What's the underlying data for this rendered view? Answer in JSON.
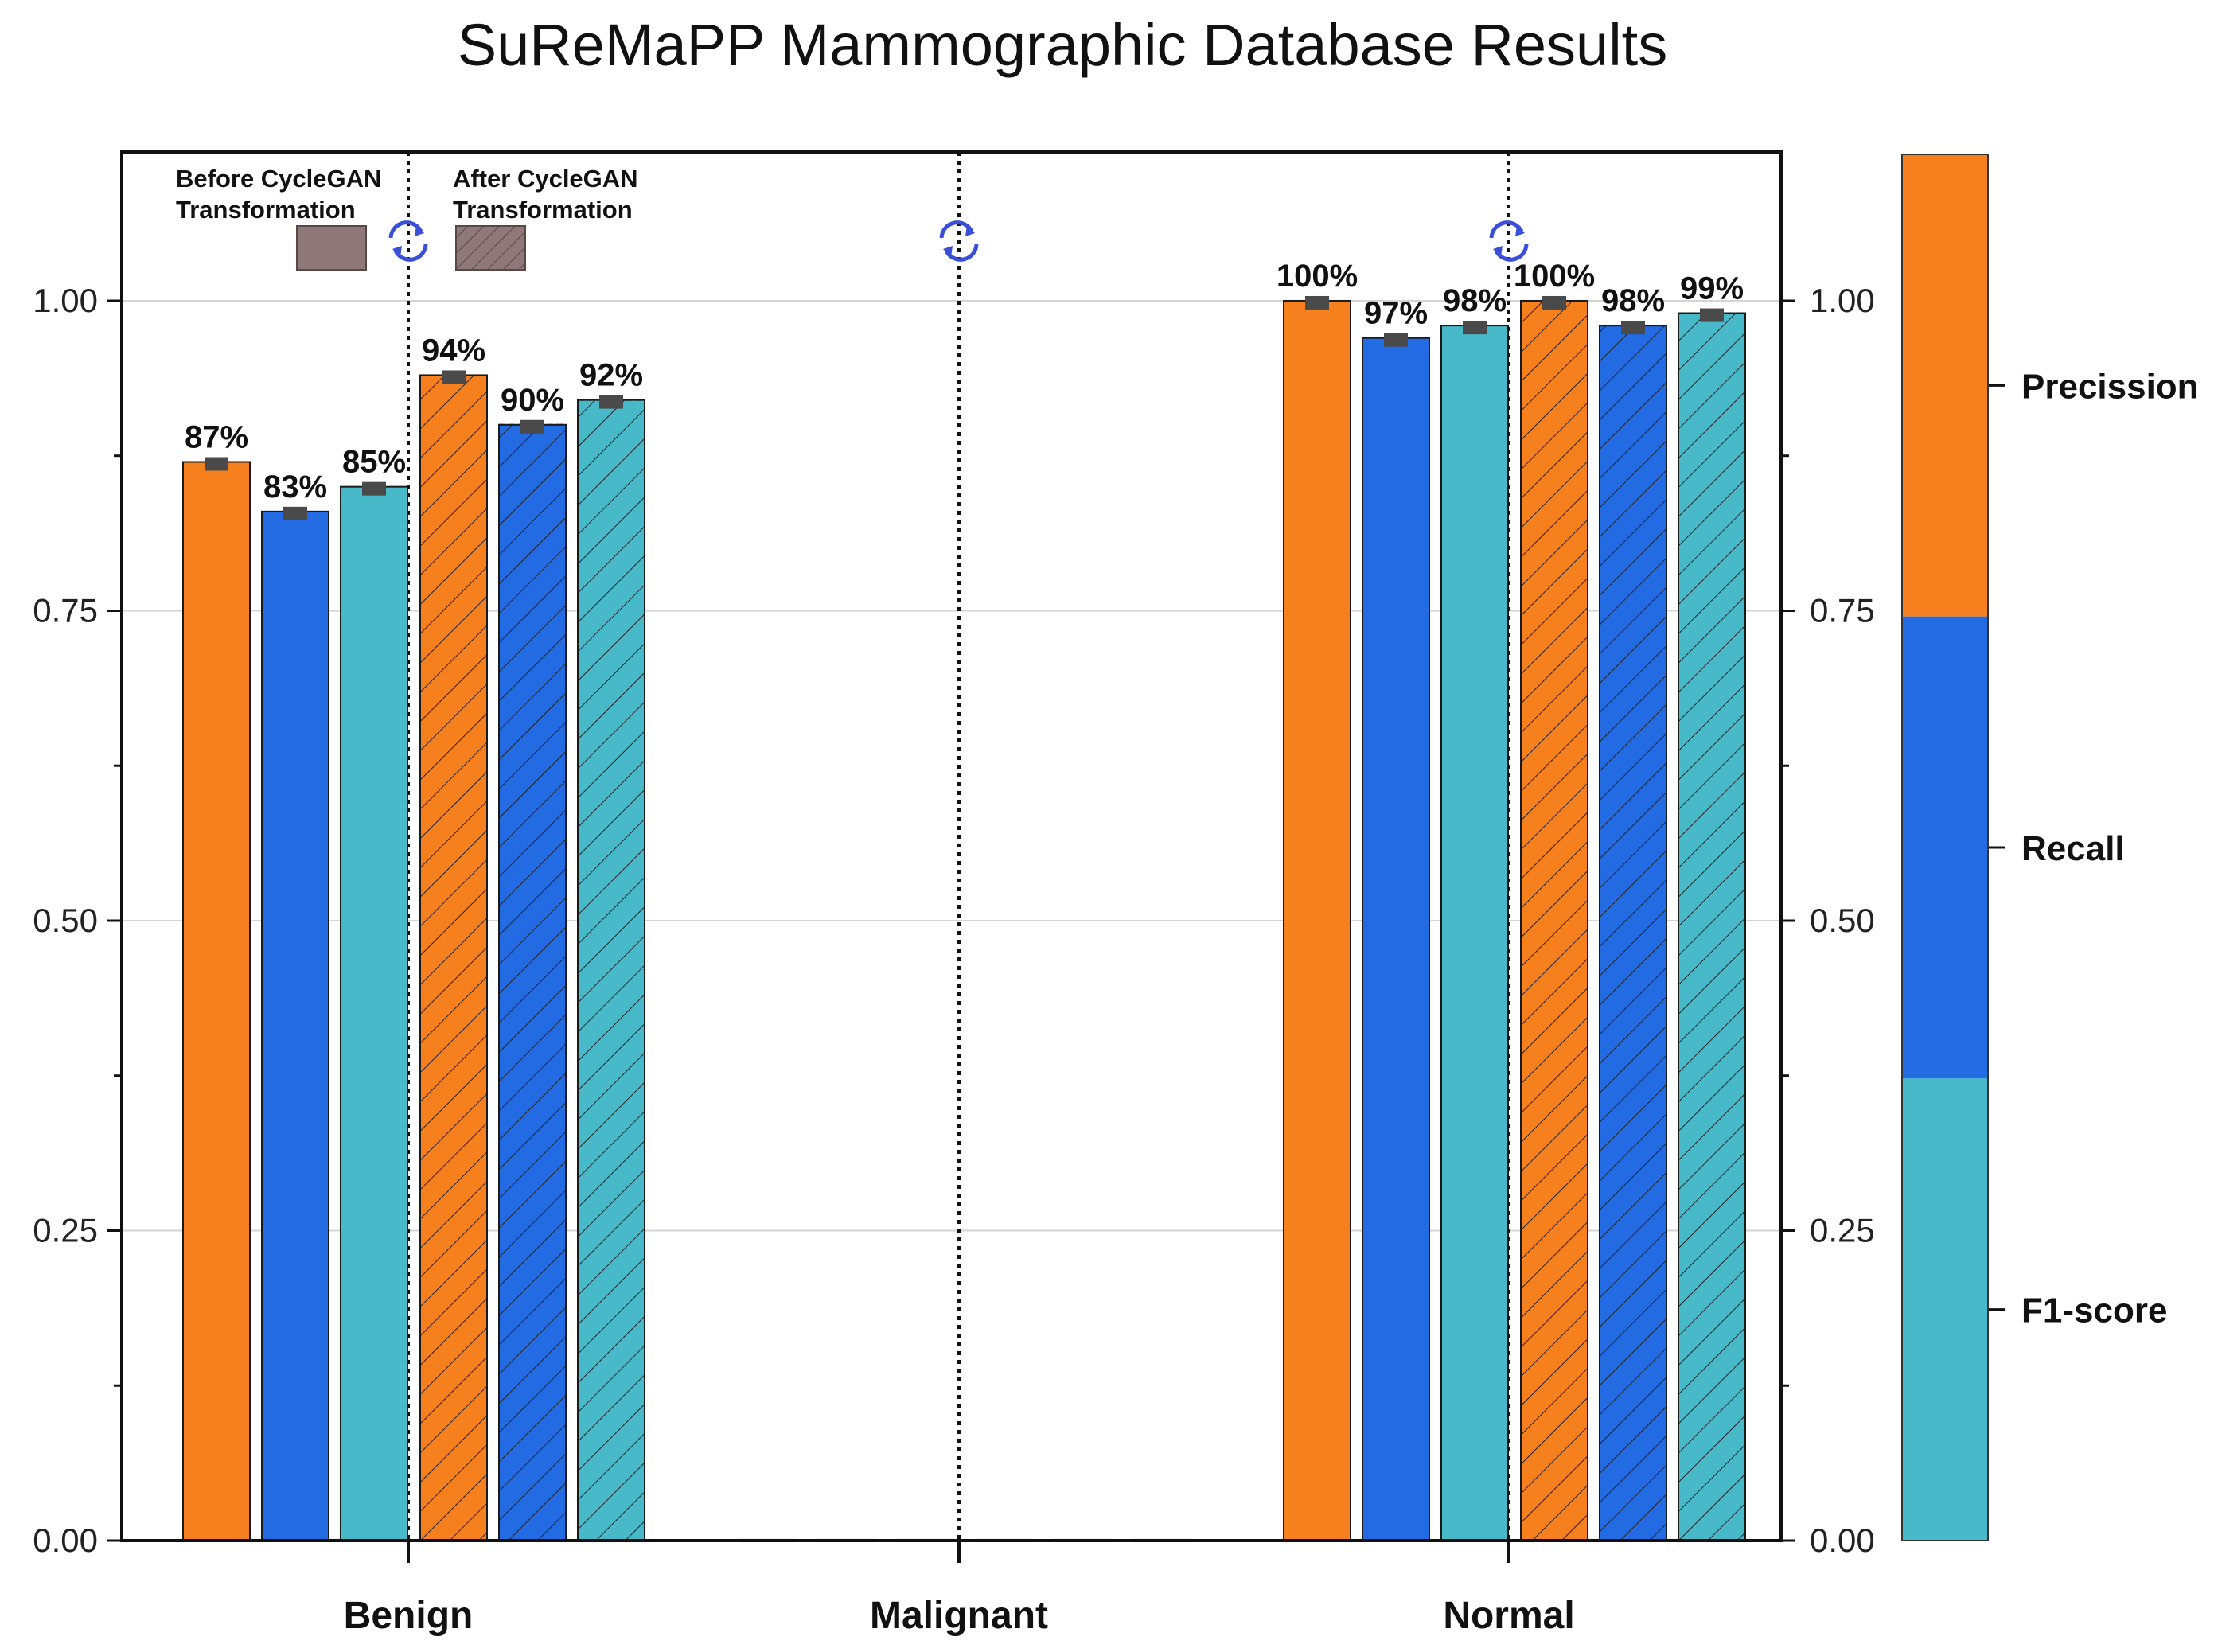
{
  "chart_data": {
    "type": "bar",
    "title": "SuReMaPP Mammographic Database Results",
    "categories": [
      "Benign",
      "Malignant",
      "Normal"
    ],
    "phases": [
      {
        "line1": "Before CycleGAN",
        "line2": "Transformation"
      },
      {
        "line1": "After CycleGAN",
        "line2": "Transformation"
      }
    ],
    "series": [
      {
        "name": "Precission",
        "phase": "before",
        "color": "#f5801d",
        "values": [
          0.87,
          0.0,
          1.0
        ],
        "labels": [
          "87%",
          "",
          "100%"
        ]
      },
      {
        "name": "Recall",
        "phase": "before",
        "color": "#226be3",
        "values": [
          0.83,
          0.0,
          0.97
        ],
        "labels": [
          "83%",
          "",
          "97%"
        ]
      },
      {
        "name": "F1-score",
        "phase": "before",
        "color": "#48b9c8",
        "values": [
          0.85,
          0.0,
          0.98
        ],
        "labels": [
          "85%",
          "",
          "98%"
        ]
      },
      {
        "name": "Precission",
        "phase": "after",
        "color": "#f5801d",
        "values": [
          0.94,
          0.0,
          1.0
        ],
        "labels": [
          "94%",
          "",
          "100%"
        ]
      },
      {
        "name": "Recall",
        "phase": "after",
        "color": "#226be3",
        "values": [
          0.9,
          0.0,
          0.98
        ],
        "labels": [
          "90%",
          "",
          "98%"
        ]
      },
      {
        "name": "F1-score",
        "phase": "after",
        "color": "#48b9c8",
        "values": [
          0.92,
          0.0,
          0.99
        ],
        "labels": [
          "92%",
          "",
          "99%"
        ]
      }
    ],
    "ylim": [
      0,
      1.12
    ],
    "yticks": [
      "0.00",
      "0.25",
      "0.50",
      "0.75",
      "1.00"
    ],
    "ytick_values": [
      0,
      0.25,
      0.5,
      0.75,
      1.0
    ],
    "legend": {
      "placement": "right",
      "items": [
        {
          "label": "Precission",
          "color": "#f5801d"
        },
        {
          "label": "Recall",
          "color": "#226be3"
        },
        {
          "label": "F1-score",
          "color": "#48b9c8"
        }
      ]
    },
    "grid": true,
    "xlabel": "",
    "ylabel": ""
  }
}
